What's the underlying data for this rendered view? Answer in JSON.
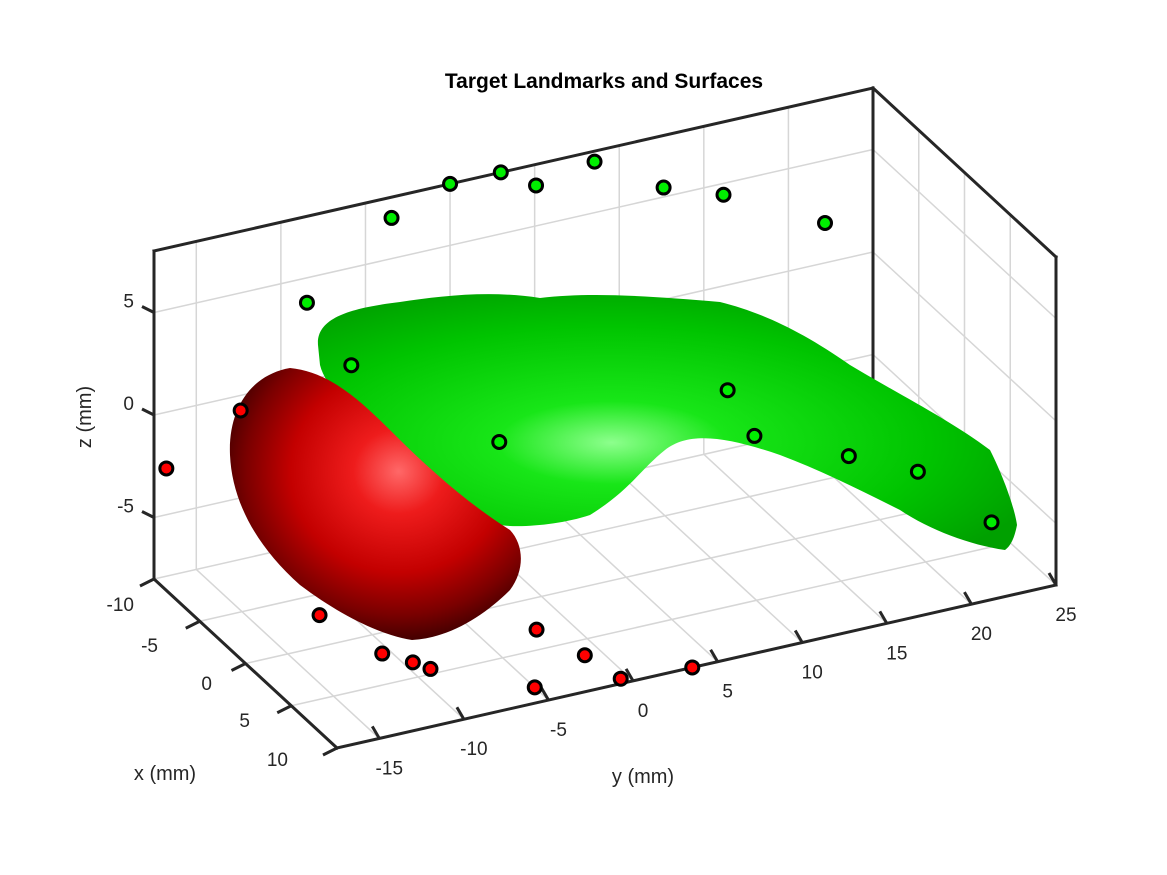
{
  "chart_data": {
    "type": "scatter",
    "title": "Target Landmarks and Surfaces",
    "xlabel": "x (mm)",
    "ylabel": "y (mm)",
    "zlabel": "z (mm)",
    "xlim": [
      -10,
      10
    ],
    "ylim": [
      -17.5,
      25
    ],
    "zlim": [
      -8,
      8
    ],
    "x_ticks": [
      -10,
      -5,
      0,
      5,
      10
    ],
    "y_ticks": [
      -15,
      -10,
      -5,
      0,
      5,
      10,
      15,
      20,
      25
    ],
    "z_ticks": [
      -5,
      0,
      5
    ],
    "x_tick_labels": [
      "-10",
      "-5",
      "0",
      "5",
      "10"
    ],
    "y_tick_labels": [
      "-15",
      "-10",
      "-5",
      "0",
      "5",
      "10",
      "15",
      "20",
      "25"
    ],
    "z_tick_labels": [
      "-5",
      "0",
      "5"
    ],
    "grid": true,
    "view": "3d",
    "surfaces": [
      {
        "color": "#dd0000",
        "shading": "lit"
      },
      {
        "color": "#00cc00",
        "shading": "lit"
      }
    ],
    "series": [
      {
        "color": "#ff0000",
        "edge_color": "#000000",
        "points": [
          {
            "x": -7.0,
            "y": -14.0,
            "z": 0.8
          },
          {
            "x": -10.5,
            "y": -16.5,
            "z": -3.0
          },
          {
            "x": -3.0,
            "y": -11.5,
            "z": -8.0
          },
          {
            "x": 2.0,
            "y": -10.5,
            "z": -8.0
          },
          {
            "x": 3.5,
            "y": -9.5,
            "z": -8.0
          },
          {
            "x": 4.5,
            "y": -9.0,
            "z": -8.0
          },
          {
            "x": 8.5,
            "y": -5.0,
            "z": -8.0
          },
          {
            "x": 5.0,
            "y": -3.0,
            "z": -7.0
          },
          {
            "x": 7.5,
            "y": -1.5,
            "z": -7.5
          },
          {
            "x": 10.5,
            "y": -1.0,
            "z": -7.5
          },
          {
            "x": 10.0,
            "y": 3.5,
            "z": -8.0
          }
        ]
      },
      {
        "color": "#00ee00",
        "edge_color": "#000000",
        "points": [
          {
            "x": -9.0,
            "y": -9.0,
            "z": 4.3
          },
          {
            "x": -6.0,
            "y": -8.0,
            "z": 2.3
          },
          {
            "x": -9.0,
            "y": -4.0,
            "z": 7.5
          },
          {
            "x": -10.0,
            "y": 0.0,
            "z": 8.0
          },
          {
            "x": -10.0,
            "y": 3.0,
            "z": 8.0
          },
          {
            "x": -8.0,
            "y": 4.0,
            "z": 8.0
          },
          {
            "x": -9.0,
            "y": 8.0,
            "z": 8.0
          },
          {
            "x": -7.0,
            "y": 11.0,
            "z": 7.0
          },
          {
            "x": -6.0,
            "y": 14.0,
            "z": 6.5
          },
          {
            "x": -6.0,
            "y": 20.0,
            "z": 4.0
          },
          {
            "x": 0.0,
            "y": -2.5,
            "z": 0.0
          },
          {
            "x": 0.0,
            "y": 11.0,
            "z": 0.0
          },
          {
            "x": 2.0,
            "y": 11.5,
            "z": -1.5
          },
          {
            "x": 4.0,
            "y": 16.0,
            "z": -2.5
          },
          {
            "x": 6.0,
            "y": 19.0,
            "z": -3.0
          },
          {
            "x": 8.5,
            "y": 22.0,
            "z": -5.0
          }
        ]
      }
    ]
  }
}
